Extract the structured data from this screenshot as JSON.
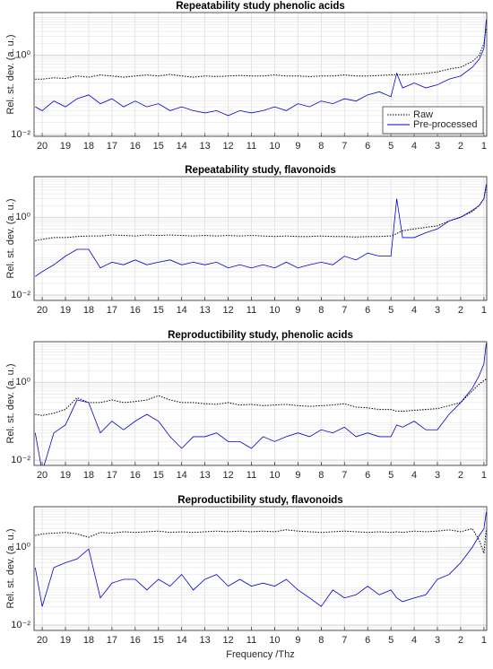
{
  "chart_data": [
    {
      "type": "line",
      "title": "Repeatability study phenolic acids",
      "ylabel": "Rel. st. dev. (a. u.)",
      "x": [
        20.3,
        20,
        19.5,
        19,
        18.5,
        18,
        17.5,
        17,
        16.5,
        16,
        15.5,
        15,
        14.5,
        14,
        13.5,
        13,
        12.5,
        12,
        11.5,
        11,
        10.5,
        10,
        9.5,
        9,
        8.5,
        8,
        7.5,
        7,
        6.5,
        6,
        5.5,
        5,
        4.75,
        4.5,
        4,
        3.5,
        3,
        2.5,
        2,
        1.5,
        1.2,
        1,
        0.9
      ],
      "series": [
        {
          "name": "Raw",
          "color": "#000000",
          "style": "dotted",
          "values": [
            0.25,
            0.25,
            0.27,
            0.26,
            0.3,
            0.28,
            0.32,
            0.3,
            0.28,
            0.3,
            0.32,
            0.3,
            0.33,
            0.3,
            0.28,
            0.3,
            0.29,
            0.3,
            0.31,
            0.3,
            0.3,
            0.32,
            0.3,
            0.3,
            0.29,
            0.3,
            0.3,
            0.32,
            0.3,
            0.3,
            0.31,
            0.32,
            0.33,
            0.32,
            0.33,
            0.35,
            0.38,
            0.45,
            0.5,
            0.7,
            1,
            2,
            5
          ]
        },
        {
          "name": "Pre-processed",
          "color": "#0000cc",
          "style": "solid",
          "values": [
            0.05,
            0.04,
            0.07,
            0.05,
            0.08,
            0.1,
            0.06,
            0.08,
            0.05,
            0.07,
            0.05,
            0.06,
            0.04,
            0.05,
            0.04,
            0.035,
            0.04,
            0.03,
            0.04,
            0.035,
            0.04,
            0.05,
            0.04,
            0.06,
            0.05,
            0.07,
            0.06,
            0.08,
            0.07,
            0.1,
            0.12,
            0.09,
            0.35,
            0.15,
            0.2,
            0.15,
            0.18,
            0.25,
            0.3,
            0.5,
            0.8,
            1.5,
            8
          ]
        }
      ],
      "legend": "lower right",
      "xlim": [
        20.35,
        0.88
      ],
      "xticks": [
        20,
        19,
        18,
        17,
        16,
        15,
        14,
        13,
        12,
        11,
        10,
        9,
        8,
        7,
        6,
        5,
        4,
        3,
        2,
        1
      ],
      "ylim": [
        0.009,
        12
      ],
      "yticks": [
        {
          "value": 0.01,
          "label": "10⁻²"
        },
        {
          "value": 1,
          "label": "10⁰"
        }
      ],
      "log_y": true,
      "grid": true
    },
    {
      "type": "line",
      "title": "Repeatability study, flavonoids",
      "ylabel": "Rel. st. dev. (a. u.)",
      "x": [
        20.3,
        20,
        19.5,
        19,
        18.5,
        18,
        17.5,
        17,
        16.5,
        16,
        15.5,
        15,
        14.5,
        14,
        13.5,
        13,
        12.5,
        12,
        11.5,
        11,
        10.5,
        10,
        9.5,
        9,
        8.5,
        8,
        7.5,
        7,
        6.5,
        6,
        5.5,
        5,
        4.75,
        4.5,
        4,
        3.5,
        3,
        2.5,
        2,
        1.5,
        1.2,
        1,
        0.9
      ],
      "series": [
        {
          "color": "#000000",
          "style": "dotted",
          "values": [
            0.25,
            0.27,
            0.3,
            0.3,
            0.32,
            0.33,
            0.33,
            0.35,
            0.34,
            0.33,
            0.35,
            0.34,
            0.35,
            0.34,
            0.33,
            0.34,
            0.33,
            0.34,
            0.33,
            0.34,
            0.33,
            0.32,
            0.33,
            0.32,
            0.32,
            0.33,
            0.32,
            0.32,
            0.31,
            0.32,
            0.32,
            0.33,
            0.38,
            0.45,
            0.5,
            0.55,
            0.6,
            0.8,
            1,
            1.4,
            2,
            3,
            6
          ]
        },
        {
          "color": "#0000cc",
          "style": "solid",
          "values": [
            0.03,
            0.04,
            0.06,
            0.1,
            0.15,
            0.15,
            0.05,
            0.07,
            0.06,
            0.08,
            0.06,
            0.07,
            0.08,
            0.06,
            0.07,
            0.06,
            0.07,
            0.05,
            0.06,
            0.05,
            0.06,
            0.05,
            0.07,
            0.05,
            0.06,
            0.07,
            0.06,
            0.1,
            0.08,
            0.12,
            0.1,
            0.1,
            3,
            0.3,
            0.3,
            0.4,
            0.5,
            0.8,
            1,
            1.5,
            2,
            3,
            7
          ]
        }
      ],
      "xlim": [
        20.35,
        0.88
      ],
      "xticks": [
        20,
        19,
        18,
        17,
        16,
        15,
        14,
        13,
        12,
        11,
        10,
        9,
        8,
        7,
        6,
        5,
        4,
        3,
        2,
        1
      ],
      "ylim": [
        0.0073,
        11
      ],
      "yticks": [
        {
          "value": 0.01,
          "label": "10⁻²"
        },
        {
          "value": 1,
          "label": "10⁰"
        }
      ],
      "log_y": true,
      "grid": true
    },
    {
      "type": "line",
      "title": "Reproductibility study, phenolic acids",
      "ylabel": "Rel. st. dev. (a. u.)",
      "x": [
        20.3,
        20,
        19.5,
        19,
        18.5,
        18,
        17.5,
        17,
        16.5,
        16,
        15.5,
        15,
        14.5,
        14,
        13.5,
        13,
        12.5,
        12,
        11.5,
        11,
        10.5,
        10,
        9.5,
        9,
        8.5,
        8,
        7.5,
        7,
        6.5,
        6,
        5.5,
        5,
        4.75,
        4.5,
        4,
        3.5,
        3,
        2.5,
        2,
        1.5,
        1.2,
        1,
        0.9
      ],
      "series": [
        {
          "color": "#000000",
          "style": "dotted",
          "values": [
            0.15,
            0.14,
            0.16,
            0.2,
            0.4,
            0.3,
            0.3,
            0.35,
            0.3,
            0.32,
            0.35,
            0.45,
            0.35,
            0.3,
            0.3,
            0.28,
            0.27,
            0.3,
            0.26,
            0.27,
            0.25,
            0.26,
            0.27,
            0.25,
            0.24,
            0.25,
            0.26,
            0.28,
            0.23,
            0.22,
            0.2,
            0.2,
            0.18,
            0.18,
            0.19,
            0.2,
            0.21,
            0.25,
            0.3,
            0.6,
            0.9,
            1.1,
            1.2
          ]
        },
        {
          "color": "#0000cc",
          "style": "solid",
          "values": [
            0.05,
            0.005,
            0.05,
            0.08,
            0.35,
            0.3,
            0.05,
            0.1,
            0.06,
            0.1,
            0.15,
            0.1,
            0.04,
            0.02,
            0.04,
            0.04,
            0.05,
            0.03,
            0.03,
            0.02,
            0.04,
            0.03,
            0.04,
            0.05,
            0.04,
            0.06,
            0.05,
            0.07,
            0.04,
            0.05,
            0.04,
            0.04,
            0.08,
            0.07,
            0.1,
            0.06,
            0.06,
            0.15,
            0.3,
            0.7,
            1.5,
            3,
            10
          ]
        }
      ],
      "xlim": [
        20.35,
        0.88
      ],
      "xticks": [
        20,
        19,
        18,
        17,
        16,
        15,
        14,
        13,
        12,
        11,
        10,
        9,
        8,
        7,
        6,
        5,
        4,
        3,
        2,
        1
      ],
      "ylim": [
        0.0073,
        11
      ],
      "yticks": [
        {
          "value": 0.01,
          "label": "10⁻²"
        },
        {
          "value": 1,
          "label": "10⁰"
        }
      ],
      "log_y": true,
      "grid": true
    },
    {
      "type": "line",
      "title": "Reproductibility study, flavonoids",
      "ylabel": "Rel. st. dev. (a. u.)",
      "xlabel": "Frequency /Thz",
      "x": [
        20.3,
        20,
        19.5,
        19,
        18.5,
        18,
        17.5,
        17,
        16.5,
        16,
        15.5,
        15,
        14.5,
        14,
        13.5,
        13,
        12.5,
        12,
        11.5,
        11,
        10.5,
        10,
        9.5,
        9,
        8.5,
        8,
        7.5,
        7,
        6.5,
        6,
        5.5,
        5,
        4.75,
        4.5,
        4,
        3.5,
        3,
        2.5,
        2,
        1.5,
        1.2,
        1,
        0.9
      ],
      "series": [
        {
          "color": "#000000",
          "style": "dotted",
          "values": [
            2,
            2.2,
            2.3,
            2.4,
            2.2,
            1.8,
            2.4,
            2.3,
            2.5,
            2.4,
            2.5,
            2.6,
            2.4,
            2.5,
            2.4,
            2.5,
            2.6,
            2.5,
            2.6,
            2.5,
            2.6,
            2.5,
            2.8,
            2.6,
            2.5,
            2.4,
            2.5,
            2.6,
            2.5,
            2.4,
            2.5,
            2.4,
            2.5,
            2.4,
            2.6,
            2.5,
            2.6,
            2.8,
            2.5,
            3,
            1.5,
            0.7,
            3
          ]
        },
        {
          "color": "#0000cc",
          "style": "solid",
          "values": [
            0.3,
            0.03,
            0.3,
            0.4,
            0.5,
            0.9,
            0.05,
            0.12,
            0.15,
            0.15,
            0.08,
            0.15,
            0.1,
            0.2,
            0.08,
            0.15,
            0.2,
            0.1,
            0.15,
            0.1,
            0.12,
            0.1,
            0.15,
            0.08,
            0.05,
            0.03,
            0.08,
            0.05,
            0.06,
            0.1,
            0.06,
            0.08,
            0.05,
            0.04,
            0.05,
            0.06,
            0.15,
            0.2,
            0.4,
            1,
            2,
            3,
            8
          ]
        }
      ],
      "xlim": [
        20.35,
        0.88
      ],
      "xticks": [
        20,
        19,
        18,
        17,
        16,
        15,
        14,
        13,
        12,
        11,
        10,
        9,
        8,
        7,
        6,
        5,
        4,
        3,
        2,
        1
      ],
      "ylim": [
        0.0073,
        11
      ],
      "yticks": [
        {
          "value": 0.01,
          "label": "10⁻²"
        },
        {
          "value": 1,
          "label": "10⁰"
        }
      ],
      "log_y": true,
      "grid": true
    }
  ]
}
